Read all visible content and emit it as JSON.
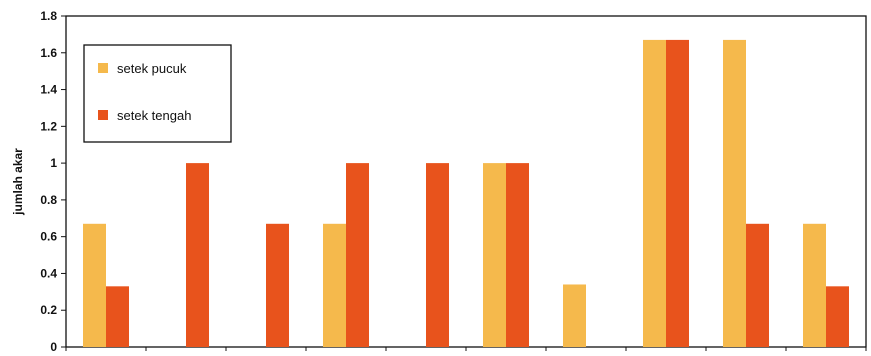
{
  "chart_data": {
    "type": "bar",
    "title": "",
    "xlabel": "",
    "ylabel": "jumlah akar",
    "ylim": [
      0,
      1.8
    ],
    "yticks": [
      0,
      0.2,
      0.4,
      0.6,
      0.8,
      1,
      1.2,
      1.4,
      1.6,
      1.8
    ],
    "ytick_labels": [
      "0",
      "0.2",
      "0.4",
      "0.6",
      "0.8",
      "1",
      "1.2",
      "1.4",
      "1.6",
      "1.8"
    ],
    "categories": [
      "",
      "",
      "",
      "",
      "",
      "",
      "",
      "",
      "",
      ""
    ],
    "grid": false,
    "legend_position": "top-left",
    "series": [
      {
        "name": "setek pucuk",
        "color": "#f5b94c",
        "values": [
          0.67,
          0,
          0,
          0.67,
          0,
          1.0,
          0.34,
          1.67,
          1.67,
          0.67
        ]
      },
      {
        "name": "setek tengah",
        "color": "#e8531c",
        "values": [
          0.33,
          1.0,
          0.67,
          1.0,
          1.0,
          1.0,
          0,
          1.67,
          0.67,
          0.33
        ]
      }
    ]
  }
}
